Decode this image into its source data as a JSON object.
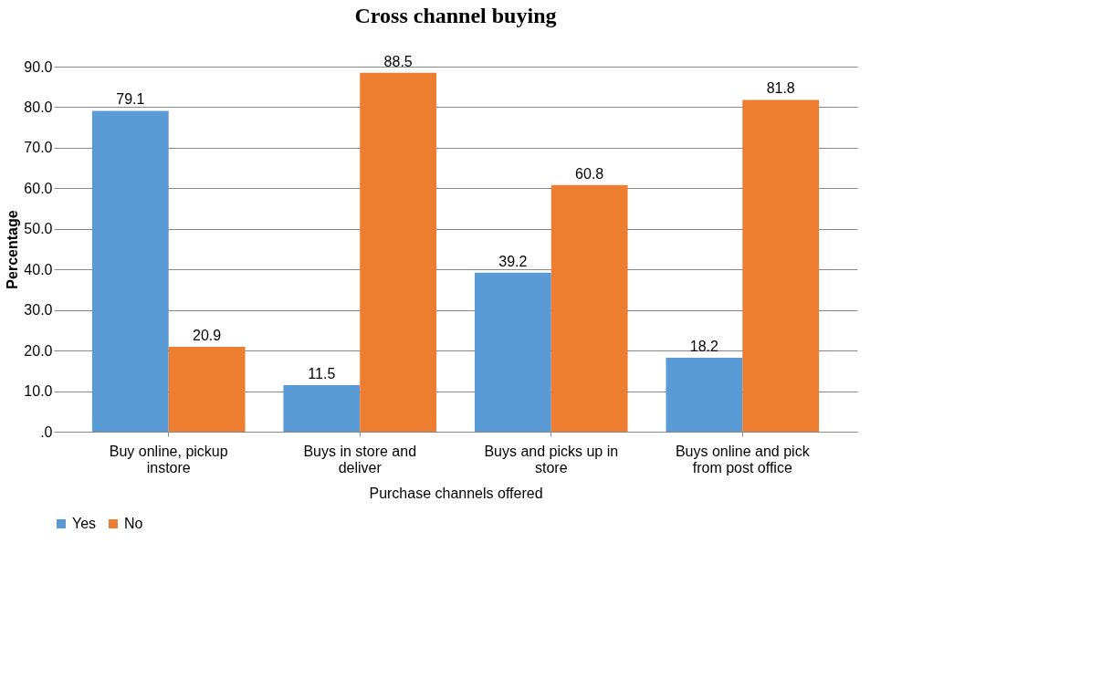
{
  "chart_data": {
    "type": "bar",
    "title": "Cross channel buying",
    "xlabel": "Purchase channels offered",
    "ylabel": "Percentage",
    "categories": [
      "Buy online, pickup instore",
      "Buys in store and deliver",
      "Buys and picks up in store",
      "Buys online and pick from post office"
    ],
    "series": [
      {
        "name": "Yes",
        "color": "#5b9bd5",
        "values": [
          79.1,
          11.5,
          39.2,
          18.2
        ]
      },
      {
        "name": "No",
        "color": "#ed7d31",
        "values": [
          20.9,
          88.5,
          60.8,
          81.8
        ]
      }
    ],
    "ylim": [
      0,
      90
    ],
    "yticks": [
      {
        "value": 0,
        "label": ".0"
      },
      {
        "value": 10,
        "label": "10.0"
      },
      {
        "value": 20,
        "label": "20.0"
      },
      {
        "value": 30,
        "label": "30.0"
      },
      {
        "value": 40,
        "label": "40.0"
      },
      {
        "value": 50,
        "label": "50.0"
      },
      {
        "value": 60,
        "label": "60.0"
      },
      {
        "value": 70,
        "label": "70.0"
      },
      {
        "value": 80,
        "label": "80.0"
      },
      {
        "value": 90,
        "label": "90.0"
      }
    ],
    "grid": "y",
    "legend": "bottom",
    "data_labels": true
  }
}
